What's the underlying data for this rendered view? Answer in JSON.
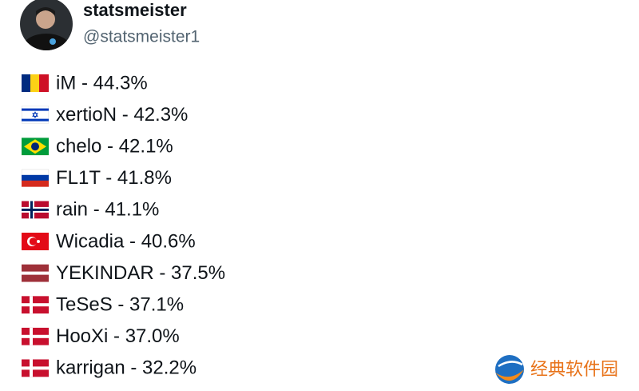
{
  "header": {
    "name": "statsmeister",
    "handle": "@statsmeister1"
  },
  "rows": [
    "iM - 44.3%",
    "xertioN - 42.3%",
    "chelo - 42.1%",
    "FL1T - 41.8%",
    "rain - 41.1%",
    "Wicadia - 40.6%",
    "YEKINDAR - 37.5%",
    "TeSeS - 37.1%",
    "HooXi - 37.0%",
    "karrigan - 32.2%"
  ],
  "watermark": "经典软件园"
}
